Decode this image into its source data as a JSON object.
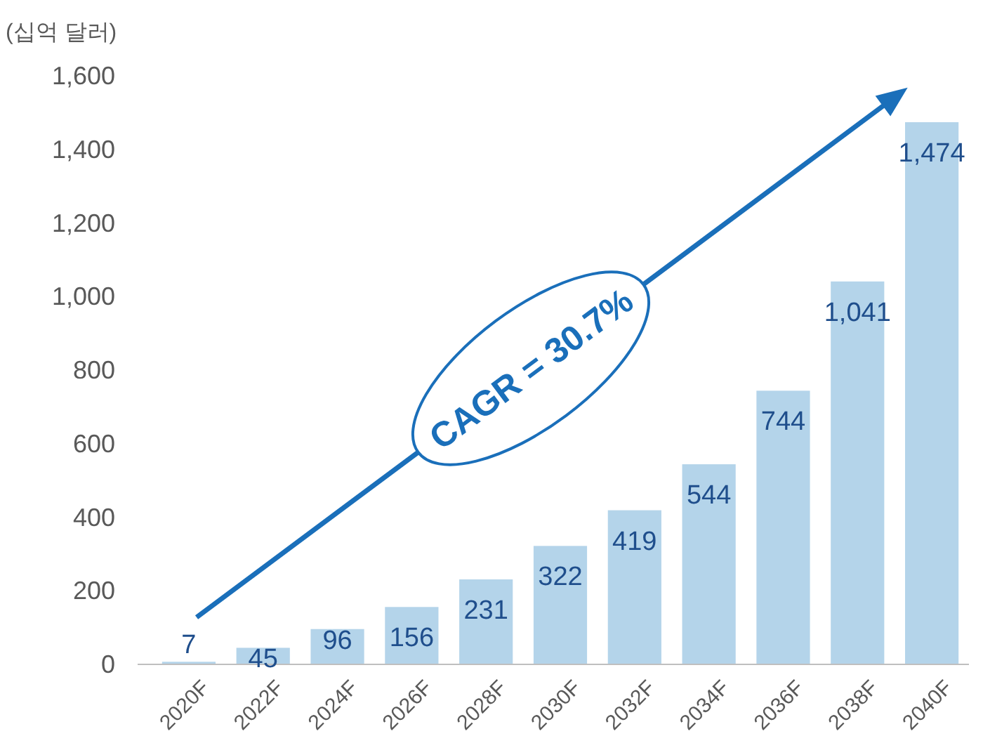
{
  "chart_data": {
    "type": "bar",
    "ylabel": "(십억 달러)",
    "categories": [
      "2020F",
      "2022F",
      "2024F",
      "2026F",
      "2028F",
      "2030F",
      "2032F",
      "2034F",
      "2036F",
      "2038F",
      "2040F"
    ],
    "values": [
      7,
      45,
      96,
      156,
      231,
      322,
      419,
      544,
      744,
      1041,
      1474
    ],
    "value_labels": [
      "7",
      "45",
      "96",
      "156",
      "231",
      "322",
      "419",
      "544",
      "744",
      "1,041",
      "1,474"
    ],
    "color": "#b4d4ea",
    "ylim": [
      0,
      1600
    ],
    "yticks": [
      0,
      200,
      400,
      600,
      800,
      {
        "value": 1000,
        "label": "1,000"
      },
      {
        "value": 1200,
        "label": "1,200"
      },
      {
        "value": 1400,
        "label": "1,400"
      },
      {
        "value": 1600,
        "label": "1,600"
      }
    ],
    "grid": false,
    "annotations": [
      "CAGR = 30.7%"
    ]
  }
}
